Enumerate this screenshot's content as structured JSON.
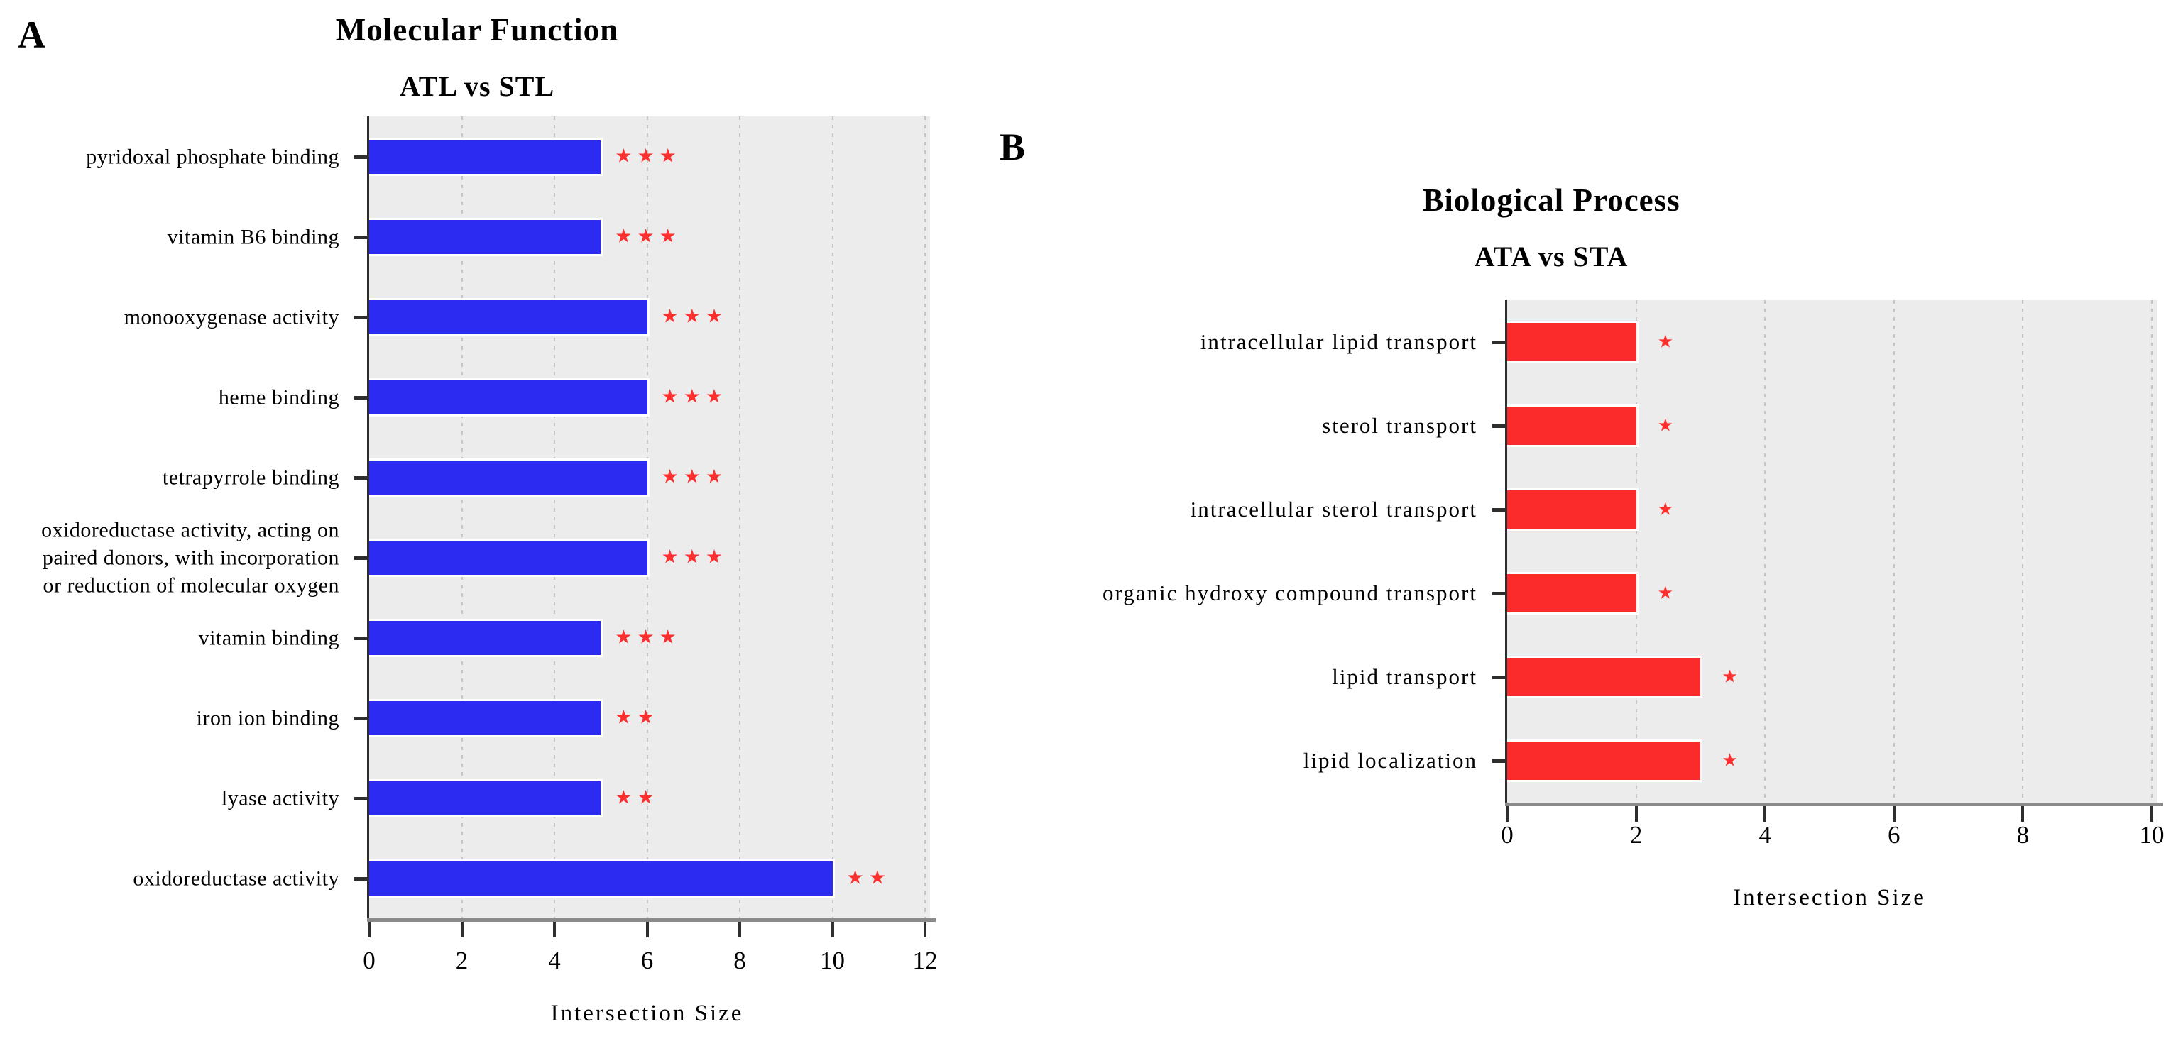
{
  "colors": {
    "bar_blue": "#2B2BF2",
    "bar_red": "#FB2B2B",
    "star_red": "#FC2F2F",
    "panel_background": "#ECECEC",
    "gridline_gray": "#C5C5C5",
    "axis_line_gray": "#8A8A8A",
    "tick_dark": "#2E2E2E",
    "text_black": "#000000"
  },
  "panels": [
    {
      "letter": "A",
      "title": "Molecular Function",
      "subtitle": "ATL vs STL"
    },
    {
      "letter": "B",
      "title": "Biological Process",
      "subtitle": "ATA vs STA"
    }
  ],
  "chart_data": [
    {
      "type": "bar",
      "orientation": "horizontal",
      "panel": "A",
      "title": "Molecular Function",
      "subtitle": "ATL vs STL",
      "xlabel": "Intersection Size",
      "xlim": [
        0,
        12
      ],
      "xticks": [
        0,
        2,
        4,
        6,
        8,
        10,
        12
      ],
      "grid": "dashed-vertical",
      "legend": null,
      "bar_color": "#2B2BF2",
      "significance_color": "#FC2F2F",
      "categories": [
        "pyridoxal phosphate binding",
        "vitamin B6 binding",
        "monooxygenase activity",
        "heme binding",
        "tetrapyrrole binding",
        "oxidoreductase activity, acting on\npaired donors, with incorporation\nor reduction of molecular oxygen",
        "vitamin binding",
        "iron ion binding",
        "lyase activity",
        "oxidoreductase activity"
      ],
      "values": [
        5,
        5,
        6,
        6,
        6,
        6,
        5,
        5,
        5,
        10
      ],
      "significance": [
        "***",
        "***",
        "***",
        "***",
        "***",
        "***",
        "***",
        "**",
        "**",
        "**"
      ]
    },
    {
      "type": "bar",
      "orientation": "horizontal",
      "panel": "B",
      "title": "Biological Process",
      "subtitle": "ATA vs STA",
      "xlabel": "Intersection Size",
      "xlim": [
        0,
        10
      ],
      "xticks": [
        0,
        2,
        4,
        6,
        8,
        10
      ],
      "grid": "dashed-vertical",
      "legend": null,
      "bar_color": "#FB2B2B",
      "significance_color": "#FC2F2F",
      "categories": [
        "intracellular lipid transport",
        "sterol transport",
        "intracellular sterol transport",
        "organic hydroxy compound transport",
        "lipid transport",
        "lipid localization"
      ],
      "values": [
        2,
        2,
        2,
        2,
        3,
        3
      ],
      "significance": [
        "*",
        "*",
        "*",
        "*",
        "*",
        "*"
      ]
    }
  ]
}
